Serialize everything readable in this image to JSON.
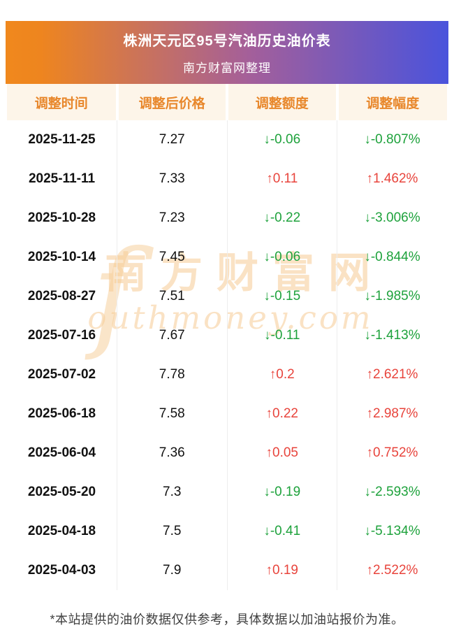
{
  "header": {
    "title_line1": "株洲天元区95号汽油历史油价表",
    "title_line2": "南方财富网整理"
  },
  "table": {
    "columns": [
      "调整时间",
      "调整后价格",
      "调整额度",
      "调整幅度"
    ],
    "rows": [
      {
        "date": "2025-11-25",
        "price": "7.27",
        "change": "↓-0.06",
        "pct": "↓-0.807%",
        "direction": "down"
      },
      {
        "date": "2025-11-11",
        "price": "7.33",
        "change": "↑0.11",
        "pct": "↑1.462%",
        "direction": "up"
      },
      {
        "date": "2025-10-28",
        "price": "7.23",
        "change": "↓-0.22",
        "pct": "↓-3.006%",
        "direction": "down"
      },
      {
        "date": "2025-10-14",
        "price": "7.45",
        "change": "↓-0.06",
        "pct": "↓-0.844%",
        "direction": "down"
      },
      {
        "date": "2025-08-27",
        "price": "7.51",
        "change": "↓-0.15",
        "pct": "↓-1.985%",
        "direction": "down"
      },
      {
        "date": "2025-07-16",
        "price": "7.67",
        "change": "↓-0.11",
        "pct": "↓-1.413%",
        "direction": "down"
      },
      {
        "date": "2025-07-02",
        "price": "7.78",
        "change": "↑0.2",
        "pct": "↑2.621%",
        "direction": "up"
      },
      {
        "date": "2025-06-18",
        "price": "7.58",
        "change": "↑0.22",
        "pct": "↑2.987%",
        "direction": "up"
      },
      {
        "date": "2025-06-04",
        "price": "7.36",
        "change": "↑0.05",
        "pct": "↑0.752%",
        "direction": "up"
      },
      {
        "date": "2025-05-20",
        "price": "7.3",
        "change": "↓-0.19",
        "pct": "↓-2.593%",
        "direction": "down"
      },
      {
        "date": "2025-04-18",
        "price": "7.5",
        "change": "↓-0.41",
        "pct": "↓-5.134%",
        "direction": "down"
      },
      {
        "date": "2025-04-03",
        "price": "7.9",
        "change": "↑0.19",
        "pct": "↑2.522%",
        "direction": "up"
      }
    ]
  },
  "watermark": {
    "s_glyph": "ſ",
    "cn": "南方财富网",
    "en": "outhmoney.com"
  },
  "footer": {
    "note": "*本站提供的油价数据仅供参考，具体数据以加油站报价为准。"
  },
  "colors": {
    "banner_gradient_left": "#f0881d",
    "banner_gradient_right": "#4a53dc",
    "header_row_bg": "#fdf5e9",
    "header_row_text": "#e8872b",
    "up_red": "#e8443c",
    "down_green": "#1ea23c",
    "watermark": "#f6cb94"
  },
  "chart_data": {
    "type": "table",
    "title": "株洲天元区95号汽油历史油价表",
    "subtitle": "南方财富网整理",
    "columns": [
      "调整时间",
      "调整后价格",
      "调整额度",
      "调整幅度"
    ],
    "rows": [
      [
        "2025-11-25",
        7.27,
        -0.06,
        "-0.807%"
      ],
      [
        "2025-11-11",
        7.33,
        0.11,
        "1.462%"
      ],
      [
        "2025-10-28",
        7.23,
        -0.22,
        "-3.006%"
      ],
      [
        "2025-10-14",
        7.45,
        -0.06,
        "-0.844%"
      ],
      [
        "2025-08-27",
        7.51,
        -0.15,
        "-1.985%"
      ],
      [
        "2025-07-16",
        7.67,
        -0.11,
        "-1.413%"
      ],
      [
        "2025-07-02",
        7.78,
        0.2,
        "2.621%"
      ],
      [
        "2025-06-18",
        7.58,
        0.22,
        "2.987%"
      ],
      [
        "2025-06-04",
        7.36,
        0.05,
        "0.752%"
      ],
      [
        "2025-05-20",
        7.3,
        -0.19,
        "-2.593%"
      ],
      [
        "2025-04-18",
        7.5,
        -0.41,
        "-5.134%"
      ],
      [
        "2025-04-03",
        7.9,
        0.19,
        "2.522%"
      ]
    ]
  }
}
